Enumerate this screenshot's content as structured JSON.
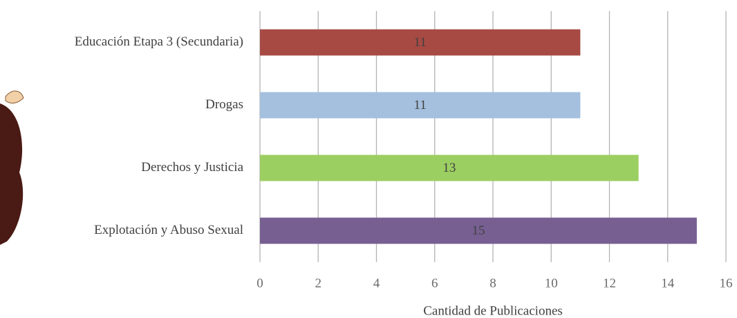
{
  "chart_data": {
    "type": "bar",
    "orientation": "horizontal",
    "categories": [
      "Educación Etapa 3 (Secundaria)",
      "Drogas",
      "Derechos y Justicia",
      "Explotación y Abuso Sexual"
    ],
    "values": [
      11,
      11,
      13,
      15
    ],
    "colors": [
      "#a84a44",
      "#a5c0de",
      "#9ccf62",
      "#775f92"
    ],
    "xlabel": "Cantidad de Publicaciones",
    "xlim": [
      0,
      16
    ],
    "xticks": [
      0,
      2,
      4,
      6,
      8,
      10,
      12,
      14,
      16
    ],
    "grid": true
  }
}
